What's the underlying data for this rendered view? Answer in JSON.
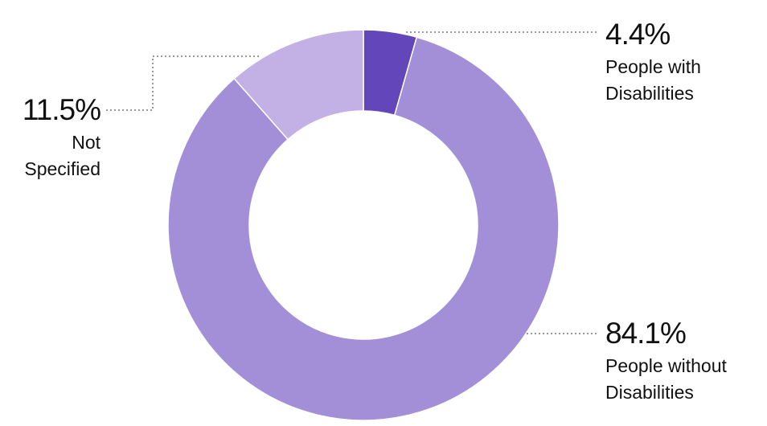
{
  "chart_data": {
    "type": "pie",
    "donut": true,
    "categories": [
      "People with Disabilities",
      "People without Disabilities",
      "Not Specified"
    ],
    "values": [
      4.4,
      84.1,
      11.5
    ],
    "value_labels": [
      "4.4%",
      "84.1%",
      "11.5%"
    ],
    "colors": [
      "#6346b9",
      "#a38fd8",
      "#c3b1e5"
    ]
  }
}
